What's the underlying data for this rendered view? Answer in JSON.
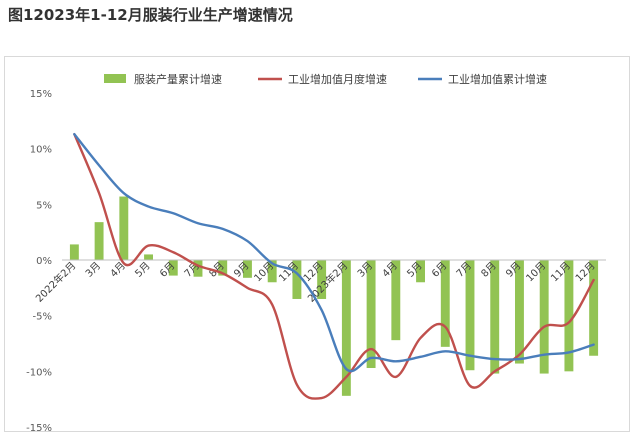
{
  "figure_title": "图12023年1-12月服装行业生产增速情况",
  "chart_data": {
    "type": "bar",
    "categories": [
      "2022年2月",
      "3月",
      "4月",
      "5月",
      "6月",
      "7月",
      "8月",
      "9月",
      "10月",
      "11月",
      "12月",
      "2023年2月",
      "3月",
      "4月",
      "5月",
      "6月",
      "7月",
      "8月",
      "9月",
      "10月",
      "11月",
      "12月"
    ],
    "ylim": [
      -15,
      15
    ],
    "yticks": [
      "15%",
      "10%",
      "5%",
      "0%",
      "-5%",
      "-10%",
      "-15%"
    ],
    "grid": false,
    "legend_position": "top",
    "series": [
      {
        "name": "服装产量累计增速",
        "type": "bar",
        "color": "#92c353",
        "values": [
          1.4,
          3.4,
          5.7,
          0.5,
          -1.4,
          -1.5,
          -1.4,
          -1.6,
          -2.0,
          -3.5,
          -3.5,
          -12.2,
          -9.7,
          -7.2,
          -2.0,
          -7.8,
          -9.9,
          -10.2,
          -9.3,
          -10.2,
          -10.0,
          -8.6
        ]
      },
      {
        "name": "工业增加值月度增速",
        "type": "line",
        "color": "#c0504d",
        "values": [
          11.3,
          6.0,
          -0.3,
          1.3,
          0.7,
          -0.5,
          -1.2,
          -2.5,
          -4.0,
          -11.2,
          -12.4,
          -10.5,
          -8.0,
          -10.5,
          -7.0,
          -6.0,
          -11.3,
          -10.0,
          -8.5,
          -6.0,
          -5.6,
          -1.8
        ]
      },
      {
        "name": "工业增加值累计增速",
        "type": "line",
        "color": "#4a7ebb",
        "values": [
          11.3,
          8.5,
          6.0,
          4.8,
          4.2,
          3.3,
          2.8,
          1.7,
          -0.3,
          -1.2,
          -4.5,
          -9.8,
          -8.8,
          -9.1,
          -8.7,
          -8.2,
          -8.6,
          -8.9,
          -8.9,
          -8.5,
          -8.3,
          -7.6
        ]
      }
    ]
  }
}
